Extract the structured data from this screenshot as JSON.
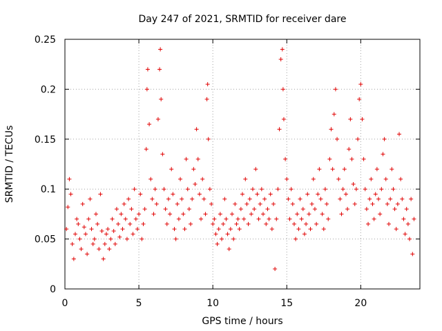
{
  "chart_data": {
    "type": "scatter",
    "title": "Day 247 of 2021, SRMTID for receiver dare",
    "xlabel": "GPS time / hours",
    "ylabel": "SRMTID / TECUs",
    "xlim": [
      0,
      24
    ],
    "ylim": [
      0,
      0.25
    ],
    "xticks": [
      0,
      5,
      10,
      15,
      20
    ],
    "xtick_labels": [
      "0",
      "5",
      "10",
      "15",
      "20"
    ],
    "yticks": [
      0,
      0.05,
      0.1,
      0.15,
      0.2,
      0.25
    ],
    "ytick_labels": [
      "0",
      "0.05",
      "0.1",
      "0.15",
      "0.2",
      "0.25"
    ],
    "grid": true,
    "marker": "plus",
    "series": [
      {
        "name": "SRMTID",
        "color": "#e00000",
        "points": [
          [
            0.1,
            0.06
          ],
          [
            0.2,
            0.082
          ],
          [
            0.3,
            0.11
          ],
          [
            0.4,
            0.095
          ],
          [
            0.5,
            0.045
          ],
          [
            0.6,
            0.03
          ],
          [
            0.7,
            0.055
          ],
          [
            0.8,
            0.07
          ],
          [
            0.9,
            0.065
          ],
          [
            1.0,
            0.05
          ],
          [
            1.1,
            0.04
          ],
          [
            1.2,
            0.085
          ],
          [
            1.3,
            0.062
          ],
          [
            1.4,
            0.055
          ],
          [
            1.5,
            0.035
          ],
          [
            1.6,
            0.07
          ],
          [
            1.7,
            0.09
          ],
          [
            1.8,
            0.06
          ],
          [
            1.9,
            0.045
          ],
          [
            2.0,
            0.05
          ],
          [
            2.1,
            0.075
          ],
          [
            2.2,
            0.065
          ],
          [
            2.3,
            0.04
          ],
          [
            2.4,
            0.095
          ],
          [
            2.5,
            0.058
          ],
          [
            2.6,
            0.03
          ],
          [
            2.7,
            0.045
          ],
          [
            2.8,
            0.055
          ],
          [
            2.9,
            0.06
          ],
          [
            3.0,
            0.04
          ],
          [
            3.1,
            0.05
          ],
          [
            3.2,
            0.07
          ],
          [
            3.3,
            0.058
          ],
          [
            3.4,
            0.045
          ],
          [
            3.5,
            0.08
          ],
          [
            3.6,
            0.065
          ],
          [
            3.7,
            0.052
          ],
          [
            3.8,
            0.075
          ],
          [
            3.9,
            0.06
          ],
          [
            4.0,
            0.085
          ],
          [
            4.1,
            0.07
          ],
          [
            4.2,
            0.05
          ],
          [
            4.3,
            0.09
          ],
          [
            4.4,
            0.065
          ],
          [
            4.5,
            0.08
          ],
          [
            4.6,
            0.055
          ],
          [
            4.7,
            0.1
          ],
          [
            4.8,
            0.07
          ],
          [
            4.9,
            0.06
          ],
          [
            5.0,
            0.075
          ],
          [
            5.1,
            0.095
          ],
          [
            5.2,
            0.05
          ],
          [
            5.3,
            0.065
          ],
          [
            5.4,
            0.08
          ],
          [
            5.5,
            0.14
          ],
          [
            5.55,
            0.2
          ],
          [
            5.6,
            0.22
          ],
          [
            5.7,
            0.165
          ],
          [
            5.8,
            0.11
          ],
          [
            5.9,
            0.09
          ],
          [
            6.0,
            0.075
          ],
          [
            6.1,
            0.1
          ],
          [
            6.2,
            0.085
          ],
          [
            6.3,
            0.17
          ],
          [
            6.4,
            0.22
          ],
          [
            6.45,
            0.24
          ],
          [
            6.5,
            0.19
          ],
          [
            6.6,
            0.135
          ],
          [
            6.7,
            0.1
          ],
          [
            6.8,
            0.08
          ],
          [
            6.9,
            0.065
          ],
          [
            7.0,
            0.09
          ],
          [
            7.1,
            0.075
          ],
          [
            7.2,
            0.12
          ],
          [
            7.3,
            0.095
          ],
          [
            7.4,
            0.06
          ],
          [
            7.5,
            0.05
          ],
          [
            7.6,
            0.085
          ],
          [
            7.7,
            0.07
          ],
          [
            7.8,
            0.11
          ],
          [
            7.9,
            0.09
          ],
          [
            8.0,
            0.075
          ],
          [
            8.1,
            0.06
          ],
          [
            8.2,
            0.13
          ],
          [
            8.3,
            0.1
          ],
          [
            8.4,
            0.08
          ],
          [
            8.5,
            0.065
          ],
          [
            8.6,
            0.09
          ],
          [
            8.7,
            0.12
          ],
          [
            8.8,
            0.105
          ],
          [
            8.9,
            0.16
          ],
          [
            9.0,
            0.13
          ],
          [
            9.1,
            0.095
          ],
          [
            9.2,
            0.07
          ],
          [
            9.3,
            0.11
          ],
          [
            9.4,
            0.09
          ],
          [
            9.5,
            0.075
          ],
          [
            9.6,
            0.19
          ],
          [
            9.65,
            0.205
          ],
          [
            9.7,
            0.15
          ],
          [
            9.8,
            0.1
          ],
          [
            9.9,
            0.085
          ],
          [
            10.0,
            0.065
          ],
          [
            10.1,
            0.07
          ],
          [
            10.2,
            0.055
          ],
          [
            10.3,
            0.045
          ],
          [
            10.4,
            0.06
          ],
          [
            10.5,
            0.075
          ],
          [
            10.6,
            0.05
          ],
          [
            10.7,
            0.065
          ],
          [
            10.8,
            0.09
          ],
          [
            10.9,
            0.07
          ],
          [
            11.0,
            0.055
          ],
          [
            11.1,
            0.04
          ],
          [
            11.2,
            0.06
          ],
          [
            11.3,
            0.075
          ],
          [
            11.4,
            0.05
          ],
          [
            11.5,
            0.085
          ],
          [
            11.6,
            0.065
          ],
          [
            11.7,
            0.07
          ],
          [
            11.8,
            0.06
          ],
          [
            11.9,
            0.08
          ],
          [
            12.0,
            0.095
          ],
          [
            12.1,
            0.07
          ],
          [
            12.2,
            0.11
          ],
          [
            12.3,
            0.085
          ],
          [
            12.4,
            0.065
          ],
          [
            12.5,
            0.09
          ],
          [
            12.6,
            0.075
          ],
          [
            12.7,
            0.1
          ],
          [
            12.8,
            0.08
          ],
          [
            12.9,
            0.12
          ],
          [
            13.0,
            0.095
          ],
          [
            13.1,
            0.07
          ],
          [
            13.2,
            0.085
          ],
          [
            13.3,
            0.1
          ],
          [
            13.4,
            0.075
          ],
          [
            13.5,
            0.09
          ],
          [
            13.6,
            0.065
          ],
          [
            13.7,
            0.08
          ],
          [
            13.8,
            0.07
          ],
          [
            13.9,
            0.095
          ],
          [
            14.0,
            0.06
          ],
          [
            14.1,
            0.085
          ],
          [
            14.2,
            0.02
          ],
          [
            14.3,
            0.07
          ],
          [
            14.4,
            0.1
          ],
          [
            14.5,
            0.16
          ],
          [
            14.6,
            0.23
          ],
          [
            14.7,
            0.24
          ],
          [
            14.75,
            0.2
          ],
          [
            14.8,
            0.17
          ],
          [
            14.9,
            0.13
          ],
          [
            15.0,
            0.11
          ],
          [
            15.1,
            0.09
          ],
          [
            15.2,
            0.07
          ],
          [
            15.3,
            0.1
          ],
          [
            15.4,
            0.085
          ],
          [
            15.5,
            0.065
          ],
          [
            15.6,
            0.05
          ],
          [
            15.7,
            0.075
          ],
          [
            15.8,
            0.06
          ],
          [
            15.9,
            0.09
          ],
          [
            16.0,
            0.07
          ],
          [
            16.1,
            0.08
          ],
          [
            16.2,
            0.055
          ],
          [
            16.3,
            0.065
          ],
          [
            16.4,
            0.095
          ],
          [
            16.5,
            0.075
          ],
          [
            16.6,
            0.06
          ],
          [
            16.7,
            0.085
          ],
          [
            16.8,
            0.11
          ],
          [
            16.9,
            0.08
          ],
          [
            17.0,
            0.065
          ],
          [
            17.1,
            0.095
          ],
          [
            17.2,
            0.12
          ],
          [
            17.3,
            0.09
          ],
          [
            17.4,
            0.075
          ],
          [
            17.5,
            0.06
          ],
          [
            17.6,
            0.1
          ],
          [
            17.7,
            0.085
          ],
          [
            17.8,
            0.07
          ],
          [
            17.9,
            0.13
          ],
          [
            18.0,
            0.16
          ],
          [
            18.1,
            0.12
          ],
          [
            18.2,
            0.175
          ],
          [
            18.3,
            0.2
          ],
          [
            18.4,
            0.15
          ],
          [
            18.5,
            0.11
          ],
          [
            18.6,
            0.09
          ],
          [
            18.7,
            0.075
          ],
          [
            18.8,
            0.1
          ],
          [
            18.9,
            0.12
          ],
          [
            19.0,
            0.095
          ],
          [
            19.1,
            0.08
          ],
          [
            19.2,
            0.14
          ],
          [
            19.3,
            0.17
          ],
          [
            19.4,
            0.13
          ],
          [
            19.5,
            0.105
          ],
          [
            19.6,
            0.085
          ],
          [
            19.7,
            0.1
          ],
          [
            19.8,
            0.15
          ],
          [
            19.9,
            0.19
          ],
          [
            20.0,
            0.205
          ],
          [
            20.1,
            0.17
          ],
          [
            20.2,
            0.13
          ],
          [
            20.3,
            0.1
          ],
          [
            20.4,
            0.08
          ],
          [
            20.5,
            0.065
          ],
          [
            20.6,
            0.09
          ],
          [
            20.7,
            0.11
          ],
          [
            20.8,
            0.085
          ],
          [
            20.9,
            0.07
          ],
          [
            21.0,
            0.095
          ],
          [
            21.1,
            0.12
          ],
          [
            21.2,
            0.09
          ],
          [
            21.3,
            0.075
          ],
          [
            21.4,
            0.1
          ],
          [
            21.5,
            0.135
          ],
          [
            21.6,
            0.15
          ],
          [
            21.7,
            0.11
          ],
          [
            21.8,
            0.085
          ],
          [
            21.9,
            0.065
          ],
          [
            22.0,
            0.09
          ],
          [
            22.1,
            0.12
          ],
          [
            22.2,
            0.1
          ],
          [
            22.3,
            0.08
          ],
          [
            22.4,
            0.06
          ],
          [
            22.5,
            0.085
          ],
          [
            22.6,
            0.155
          ],
          [
            22.7,
            0.11
          ],
          [
            22.8,
            0.09
          ],
          [
            22.9,
            0.07
          ],
          [
            23.0,
            0.055
          ],
          [
            23.1,
            0.08
          ],
          [
            23.2,
            0.065
          ],
          [
            23.3,
            0.05
          ],
          [
            23.4,
            0.09
          ],
          [
            23.5,
            0.035
          ],
          [
            23.6,
            0.07
          ]
        ]
      }
    ]
  }
}
